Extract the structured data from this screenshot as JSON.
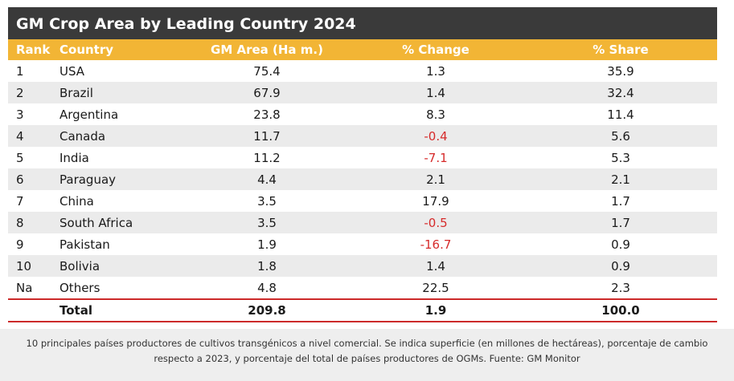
{
  "title": "GM Crop Area by Leading Country 2024",
  "columns": [
    "Rank",
    "Country",
    "GM Area (Ha m.)",
    "% Change",
    "% Share"
  ],
  "rows": [
    {
      "rank": "1",
      "country": "USA",
      "area": "75.4",
      "change": "1.3",
      "share": "35.9",
      "negative": false
    },
    {
      "rank": "2",
      "country": "Brazil",
      "area": "67.9",
      "change": "1.4",
      "share": "32.4",
      "negative": false
    },
    {
      "rank": "3",
      "country": "Argentina",
      "area": "23.8",
      "change": "8.3",
      "share": "11.4",
      "negative": false
    },
    {
      "rank": "4",
      "country": "Canada",
      "area": "11.7",
      "change": "-0.4",
      "share": "5.6",
      "negative": true
    },
    {
      "rank": "5",
      "country": "India",
      "area": "11.2",
      "change": "-7.1",
      "share": "5.3",
      "negative": true
    },
    {
      "rank": "6",
      "country": "Paraguay",
      "area": "4.4",
      "change": "2.1",
      "share": "2.1",
      "negative": false
    },
    {
      "rank": "7",
      "country": "China",
      "area": "3.5",
      "change": "17.9",
      "share": "1.7",
      "negative": false
    },
    {
      "rank": "8",
      "country": "South Africa",
      "area": "3.5",
      "change": "-0.5",
      "share": "1.7",
      "negative": true
    },
    {
      "rank": "9",
      "country": "Pakistan",
      "area": "1.9",
      "change": "-16.7",
      "share": "0.9",
      "negative": true
    },
    {
      "rank": "10",
      "country": "Bolivia",
      "area": "1.8",
      "change": "1.4",
      "share": "0.9",
      "negative": false
    },
    {
      "rank": "Na",
      "country": "Others",
      "area": "4.8",
      "change": "22.5",
      "share": "2.3",
      "negative": false
    }
  ],
  "total": {
    "label": "Total",
    "area": "209.8",
    "change": "1.9",
    "share": "100.0"
  },
  "caption": "10 principales países productores de cultivos transgénicos a nivel comercial. Se indica superficie (en millones de hectáreas), porcentaje de cambio respecto a 2023, y porcentaje del total de países productores de OGMs. Fuente: GM Monitor",
  "colors": {
    "header_bg": "#f2b535",
    "title_bg": "#3a3a3a",
    "negative": "#d62b2b",
    "total_rule": "#cc2a2a"
  }
}
